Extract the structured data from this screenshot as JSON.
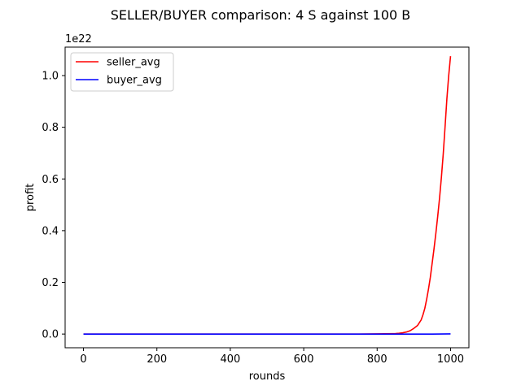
{
  "chart_data": {
    "type": "line",
    "title": "SELLER/BUYER comparison: 4 S against 100 B",
    "xlabel": "rounds",
    "ylabel": "profit",
    "y_offset_label": "1e22",
    "xlim": [
      -50,
      1050
    ],
    "ylim": [
      -0.053,
      1.11
    ],
    "x_ticks": [
      0,
      200,
      400,
      600,
      800,
      1000
    ],
    "x_tick_labels": [
      "0",
      "200",
      "400",
      "600",
      "800",
      "1000"
    ],
    "y_ticks": [
      0.0,
      0.2,
      0.4,
      0.6,
      0.8,
      1.0
    ],
    "y_tick_labels": [
      "0.0",
      "0.2",
      "0.4",
      "0.6",
      "0.8",
      "1.0"
    ],
    "grid": false,
    "legend_position": "top-left",
    "series": [
      {
        "name": "seller_avg",
        "color": "#ff0000",
        "x": [
          0,
          100,
          200,
          300,
          400,
          500,
          600,
          700,
          750,
          800,
          820,
          840,
          850,
          860,
          870,
          880,
          890,
          900,
          910,
          920,
          925,
          930,
          935,
          940,
          945,
          950,
          955,
          960,
          965,
          970,
          975,
          980,
          985,
          990,
          995,
          1000
        ],
        "values": [
          0,
          0,
          0,
          0,
          0,
          0,
          0,
          0,
          0,
          0.0005,
          0.001,
          0.0015,
          0.002,
          0.003,
          0.005,
          0.008,
          0.013,
          0.022,
          0.033,
          0.055,
          0.075,
          0.1,
          0.135,
          0.175,
          0.22,
          0.275,
          0.33,
          0.39,
          0.455,
          0.525,
          0.605,
          0.695,
          0.8,
          0.91,
          1.0,
          1.075
        ]
      },
      {
        "name": "buyer_avg",
        "color": "#0000ff",
        "x": [
          0,
          200,
          400,
          600,
          800,
          900,
          950,
          1000
        ],
        "values": [
          0,
          0,
          0,
          0,
          0,
          0,
          0,
          0.0005
        ]
      }
    ]
  }
}
